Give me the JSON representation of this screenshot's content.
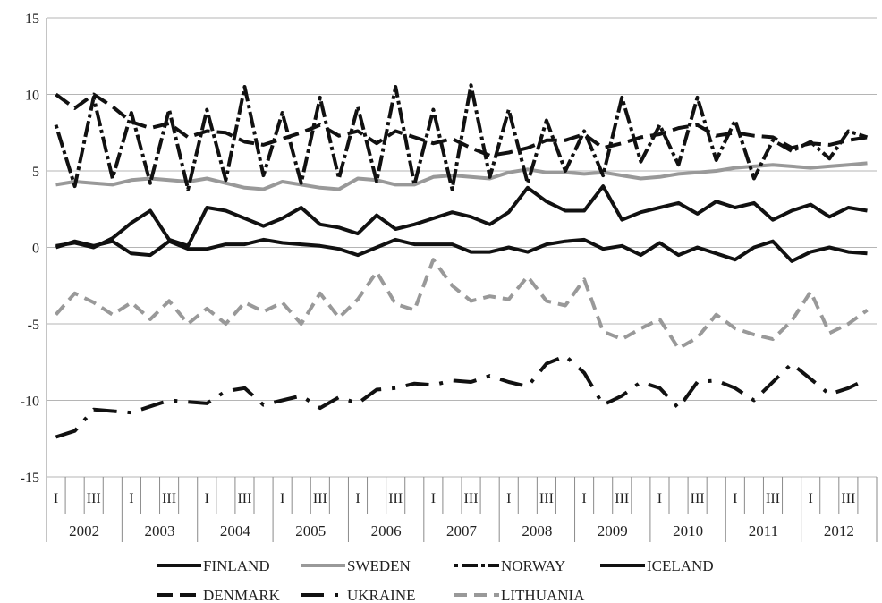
{
  "chart_data": {
    "type": "line",
    "title": "",
    "xlabel": "",
    "ylabel": "",
    "ylim": [
      -15,
      15
    ],
    "yticks": [
      -15,
      -10,
      -5,
      0,
      5,
      10,
      15
    ],
    "grid": "horizontal",
    "legend_position": "bottom",
    "years": [
      "2002",
      "2003",
      "2004",
      "2005",
      "2006",
      "2007",
      "2008",
      "2009",
      "2010",
      "2011",
      "2012"
    ],
    "quarter_tick_labels": [
      "I",
      "",
      "III",
      ""
    ],
    "series": [
      {
        "name": "FINLAND",
        "color": "#111111",
        "dash": "solid",
        "values": [
          0.0,
          0.4,
          0.1,
          0.4,
          -0.4,
          -0.5,
          0.4,
          -0.1,
          -0.1,
          0.2,
          0.2,
          0.5,
          0.3,
          0.2,
          0.1,
          -0.1,
          -0.5,
          0.0,
          0.5,
          0.2,
          0.2,
          0.2,
          -0.3,
          -0.3,
          0.0,
          -0.3,
          0.2,
          0.4,
          0.5,
          -0.1,
          0.1,
          -0.5,
          0.3,
          -0.5,
          0.0,
          -0.4,
          -0.8,
          0.0,
          0.4,
          -0.9,
          -0.3,
          0.0,
          -0.3,
          -0.4
        ]
      },
      {
        "name": "SWEDEN",
        "color": "#999999",
        "dash": "solid",
        "values": [
          4.1,
          4.3,
          4.2,
          4.1,
          4.4,
          4.5,
          4.4,
          4.3,
          4.5,
          4.2,
          3.9,
          3.8,
          4.3,
          4.1,
          3.9,
          3.8,
          4.5,
          4.4,
          4.1,
          4.1,
          4.6,
          4.7,
          4.6,
          4.5,
          4.9,
          5.1,
          4.9,
          4.9,
          4.8,
          4.9,
          4.7,
          4.5,
          4.6,
          4.8,
          4.9,
          5.0,
          5.2,
          5.3,
          5.4,
          5.3,
          5.2,
          5.3,
          5.4,
          5.5
        ]
      },
      {
        "name": "NORWAY",
        "color": "#111111",
        "dash": "4 4 18 4",
        "values": [
          8.0,
          4.0,
          9.8,
          4.5,
          8.8,
          4.2,
          9.0,
          3.8,
          9.0,
          4.4,
          10.5,
          4.7,
          8.8,
          4.2,
          9.8,
          4.5,
          9.2,
          4.3,
          10.5,
          4.1,
          9.0,
          3.8,
          10.6,
          4.6,
          9.0,
          4.2,
          8.3,
          5.0,
          7.6,
          4.7,
          9.8,
          5.6,
          8.0,
          5.4,
          9.8,
          5.7,
          8.3,
          4.5,
          7.0,
          6.3,
          6.9,
          5.8,
          7.6,
          7.2
        ]
      },
      {
        "name": "ICELAND",
        "color": "#111111",
        "dash": "solid",
        "values": [
          0.1,
          0.3,
          0.0,
          0.6,
          1.6,
          2.4,
          0.5,
          0.1,
          2.6,
          2.4,
          1.9,
          1.4,
          1.9,
          2.6,
          1.5,
          1.3,
          0.9,
          2.1,
          1.2,
          1.5,
          1.9,
          2.3,
          2.0,
          1.5,
          2.3,
          3.9,
          3.0,
          2.4,
          2.4,
          4.0,
          1.8,
          2.3,
          2.6,
          2.9,
          2.2,
          3.0,
          2.6,
          2.9,
          1.8,
          2.4,
          2.8,
          2.0,
          2.6,
          2.4
        ]
      },
      {
        "name": "DENMARK",
        "color": "#111111",
        "dash": "18 8",
        "values": [
          10.0,
          9.1,
          10.0,
          9.2,
          8.2,
          7.8,
          8.1,
          7.2,
          7.6,
          7.5,
          6.9,
          6.7,
          7.1,
          7.5,
          8.0,
          7.3,
          7.6,
          6.8,
          7.6,
          7.2,
          6.8,
          7.1,
          6.5,
          6.0,
          6.2,
          6.5,
          7.0,
          7.0,
          7.4,
          6.5,
          6.8,
          7.2,
          7.4,
          7.8,
          8.0,
          7.3,
          7.5,
          7.3,
          7.2,
          6.5,
          6.8,
          6.7,
          7.0,
          7.2
        ]
      },
      {
        "name": "UKRAINE",
        "color": "#111111",
        "dash": "26 12 4 12",
        "values": [
          -12.4,
          -12.0,
          -10.6,
          -10.7,
          -10.8,
          -10.4,
          -10.0,
          -10.1,
          -10.2,
          -9.4,
          -9.2,
          -10.3,
          -10.0,
          -9.7,
          -10.5,
          -9.8,
          -10.2,
          -9.3,
          -9.2,
          -8.9,
          -9.0,
          -8.7,
          -8.8,
          -8.4,
          -8.8,
          -9.1,
          -7.6,
          -7.1,
          -8.2,
          -10.3,
          -9.7,
          -8.8,
          -9.2,
          -10.5,
          -8.8,
          -8.7,
          -9.2,
          -10.0,
          -8.8,
          -7.6,
          -8.6,
          -9.6,
          -9.2,
          -8.6
        ]
      },
      {
        "name": "LITHUANIA",
        "color": "#999999",
        "dash": "14 8",
        "values": [
          -4.4,
          -3.0,
          -3.6,
          -4.4,
          -3.6,
          -4.7,
          -3.5,
          -5.0,
          -4.0,
          -5.0,
          -3.6,
          -4.2,
          -3.6,
          -5.0,
          -3.0,
          -4.6,
          -3.4,
          -1.6,
          -3.7,
          -4.1,
          -0.8,
          -2.5,
          -3.5,
          -3.2,
          -3.4,
          -1.9,
          -3.5,
          -3.8,
          -2.1,
          -5.5,
          -6.0,
          -5.3,
          -4.7,
          -6.6,
          -5.9,
          -4.4,
          -5.3,
          -5.7,
          -6.0,
          -4.8,
          -2.9,
          -5.6,
          -5.0,
          -4.1
        ]
      }
    ]
  }
}
